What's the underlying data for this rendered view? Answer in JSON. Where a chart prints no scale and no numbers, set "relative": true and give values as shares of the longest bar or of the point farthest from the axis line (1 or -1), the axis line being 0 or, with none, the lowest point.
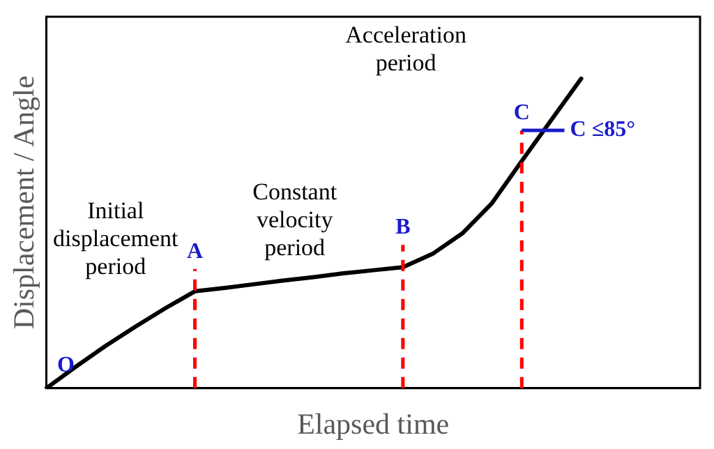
{
  "chart_data": {
    "type": "line",
    "relative": true,
    "xlabel": "Elapsed time",
    "ylabel": "Displacement / Angle",
    "grid": false,
    "legend": false,
    "marker": "none",
    "line_style": "solid",
    "categories": [
      null,
      null,
      null,
      null,
      null,
      null,
      null,
      null,
      null,
      null,
      null,
      null,
      null,
      null,
      null,
      null,
      null,
      null,
      null,
      null,
      null,
      null,
      null
    ],
    "series": [
      {
        "color": "#000000",
        "values": [
          0,
          0.07,
          0.137,
          0.199,
          0.258,
          0.313,
          0.324,
          0.336,
          0.348,
          0.359,
          0.371,
          0.381,
          0.391,
          0.434,
          0.5,
          0.598,
          0.734,
          0.867,
          1,
          null,
          null,
          null,
          null
        ]
      }
    ],
    "annotations": [
      "Initial\ndisplacement\nperiod",
      "Constant\nvelocity\nperiod",
      "Acceleration\nperiod",
      "O",
      "A",
      "B",
      "C",
      "C ≤85°"
    ]
  }
}
